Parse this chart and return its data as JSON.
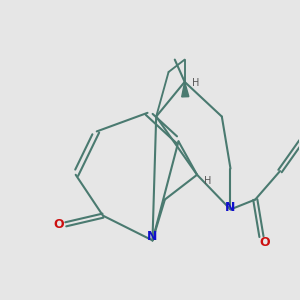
{
  "bg_color": "#e6e6e6",
  "bond_color": "#4a7a70",
  "N_color": "#1010cc",
  "O_color": "#cc1010",
  "H_color": "#555555",
  "lw": 1.5,
  "fig_size": [
    3.0,
    3.0
  ],
  "dpi": 100,
  "xlim": [
    0,
    10
  ],
  "ylim": [
    0,
    10
  ]
}
